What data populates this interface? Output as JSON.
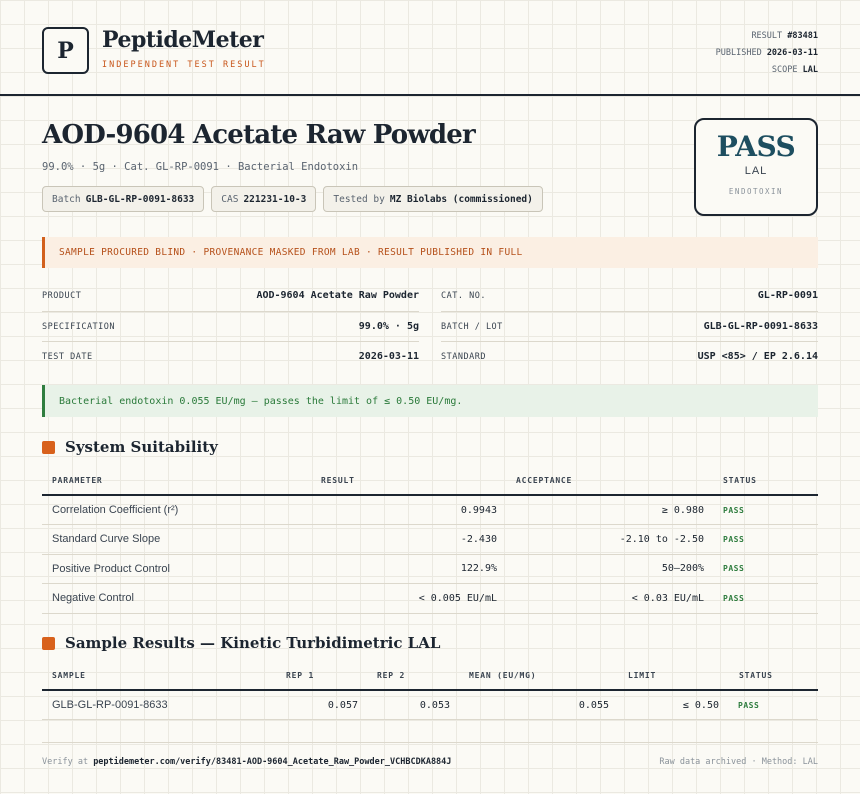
{
  "brand": {
    "logo_letter": "P",
    "name": "PeptideMeter",
    "subtitle": "INDEPENDENT TEST RESULT"
  },
  "meta": {
    "result_label": "RESULT",
    "result_value": "#83481",
    "published_label": "PUBLISHED",
    "published_value": "2026-03-11",
    "scope_label": "SCOPE",
    "scope_value": "LAL"
  },
  "product": {
    "title": "AOD-9604 Acetate Raw Powder",
    "subtitle": "99.0% · 5g · Cat. GL-RP-0091 · Bacterial Endotoxin",
    "chips": [
      {
        "label": "Batch",
        "value": "GLB-GL-RP-0091-8633"
      },
      {
        "label": "CAS",
        "value": "221231-10-3"
      },
      {
        "label": "Tested by",
        "value": "MZ Biolabs (commissioned)"
      }
    ]
  },
  "verdict": {
    "word": "PASS",
    "method": "LAL",
    "category": "ENDOTOXIN",
    "color": "#1d4e60"
  },
  "notice": "SAMPLE PROCURED BLIND · PROVENANCE MASKED FROM LAB · RESULT PUBLISHED IN FULL",
  "details": {
    "product_label": "PRODUCT",
    "product_value": "AOD-9604 Acetate Raw Powder",
    "spec_label": "SPECIFICATION",
    "spec_value": "99.0% · 5g",
    "date_label": "TEST DATE",
    "date_value": "2026-03-11",
    "cat_label": "CAT. NO.",
    "cat_value": "GL-RP-0091",
    "batch_label": "BATCH / LOT",
    "batch_value": "GLB-GL-RP-0091-8633",
    "standard_label": "STANDARD",
    "standard_value": "USP <85> / EP 2.6.14"
  },
  "result_banner": "Bacterial endotoxin 0.055 EU/mg — passes the limit of ≤ 0.50 EU/mg.",
  "suitability": {
    "title": "System Suitability",
    "headers": {
      "parameter": "PARAMETER",
      "result": "RESULT",
      "acceptance": "ACCEPTANCE",
      "status": "STATUS"
    },
    "rows": [
      {
        "parameter": "Correlation Coefficient (r²)",
        "result": "0.9943",
        "acceptance": "≥ 0.980",
        "status": "PASS"
      },
      {
        "parameter": "Standard Curve Slope",
        "result": "-2.430",
        "acceptance": "-2.10 to -2.50",
        "status": "PASS"
      },
      {
        "parameter": "Positive Product Control",
        "result": "122.9%",
        "acceptance": "50–200%",
        "status": "PASS"
      },
      {
        "parameter": "Negative Control",
        "result": "< 0.005 EU/mL",
        "acceptance": "< 0.03 EU/mL",
        "status": "PASS"
      }
    ]
  },
  "samples": {
    "title": "Sample Results — Kinetic Turbidimetric LAL",
    "headers": {
      "sample": "SAMPLE",
      "rep1": "REP 1",
      "rep2": "REP 2",
      "mean": "MEAN (EU/MG)",
      "limit": "LIMIT",
      "status": "STATUS"
    },
    "rows": [
      {
        "sample": "GLB-GL-RP-0091-8633",
        "rep1": "0.057",
        "rep2": "0.053",
        "mean": "0.055",
        "limit": "≤ 0.50",
        "status": "PASS"
      }
    ]
  },
  "footer": {
    "verify_label": "Verify at",
    "verify_url": "peptidemeter.com/verify/83481-AOD-9604_Acetate_Raw_Powder_VCHBCDKA884J",
    "archive_note": "Raw data archived · Method: LAL"
  },
  "colors": {
    "accent": "#d8611c",
    "pass_green": "#2f7d3f",
    "ink": "#1c2530"
  }
}
